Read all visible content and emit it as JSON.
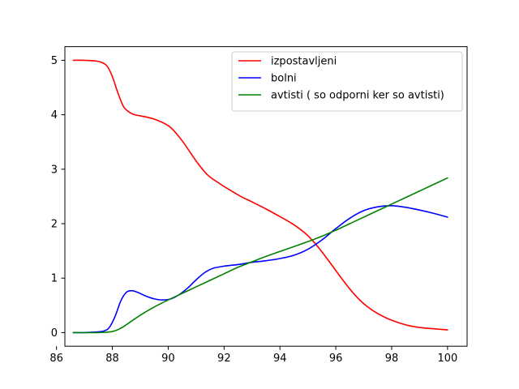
{
  "chart_data": {
    "type": "line",
    "title": "",
    "xlabel": "",
    "ylabel": "",
    "xlim": [
      86.3,
      100.7
    ],
    "ylim": [
      -0.25,
      5.25
    ],
    "x_ticks": [
      86,
      88,
      90,
      92,
      94,
      96,
      98,
      100
    ],
    "y_ticks": [
      0,
      1,
      2,
      3,
      4,
      5
    ],
    "grid": false,
    "legend_position": "top-right",
    "series": [
      {
        "name": "izpostavljeni",
        "color": "#ff0000",
        "points": [
          [
            86.6,
            5.0
          ],
          [
            87.0,
            5.0
          ],
          [
            87.5,
            4.98
          ],
          [
            87.8,
            4.9
          ],
          [
            88.0,
            4.7
          ],
          [
            88.2,
            4.4
          ],
          [
            88.4,
            4.15
          ],
          [
            88.6,
            4.05
          ],
          [
            88.8,
            4.0
          ],
          [
            89.0,
            3.98
          ],
          [
            89.5,
            3.92
          ],
          [
            90.0,
            3.8
          ],
          [
            90.3,
            3.65
          ],
          [
            90.6,
            3.45
          ],
          [
            91.0,
            3.15
          ],
          [
            91.4,
            2.9
          ],
          [
            91.8,
            2.75
          ],
          [
            92.2,
            2.62
          ],
          [
            92.6,
            2.5
          ],
          [
            93.0,
            2.4
          ],
          [
            93.5,
            2.27
          ],
          [
            94.0,
            2.13
          ],
          [
            94.5,
            1.98
          ],
          [
            95.0,
            1.78
          ],
          [
            95.4,
            1.55
          ],
          [
            95.8,
            1.28
          ],
          [
            96.2,
            1.0
          ],
          [
            96.6,
            0.74
          ],
          [
            97.0,
            0.53
          ],
          [
            97.4,
            0.38
          ],
          [
            97.8,
            0.27
          ],
          [
            98.2,
            0.19
          ],
          [
            98.6,
            0.13
          ],
          [
            99.0,
            0.095
          ],
          [
            99.5,
            0.07
          ],
          [
            100.0,
            0.05
          ]
        ]
      },
      {
        "name": "bolni",
        "color": "#0000ff",
        "points": [
          [
            86.6,
            0.0
          ],
          [
            87.0,
            0.0
          ],
          [
            87.4,
            0.01
          ],
          [
            87.7,
            0.03
          ],
          [
            87.9,
            0.1
          ],
          [
            88.1,
            0.3
          ],
          [
            88.3,
            0.58
          ],
          [
            88.5,
            0.74
          ],
          [
            88.7,
            0.77
          ],
          [
            88.9,
            0.74
          ],
          [
            89.2,
            0.67
          ],
          [
            89.5,
            0.62
          ],
          [
            89.8,
            0.6
          ],
          [
            90.1,
            0.62
          ],
          [
            90.4,
            0.7
          ],
          [
            90.7,
            0.82
          ],
          [
            91.0,
            0.97
          ],
          [
            91.3,
            1.1
          ],
          [
            91.6,
            1.18
          ],
          [
            92.0,
            1.22
          ],
          [
            92.5,
            1.25
          ],
          [
            93.0,
            1.29
          ],
          [
            93.5,
            1.32
          ],
          [
            94.0,
            1.36
          ],
          [
            94.5,
            1.42
          ],
          [
            95.0,
            1.53
          ],
          [
            95.5,
            1.7
          ],
          [
            96.0,
            1.91
          ],
          [
            96.5,
            2.1
          ],
          [
            97.0,
            2.24
          ],
          [
            97.5,
            2.31
          ],
          [
            98.0,
            2.33
          ],
          [
            98.5,
            2.3
          ],
          [
            99.0,
            2.25
          ],
          [
            99.5,
            2.19
          ],
          [
            100.0,
            2.12
          ]
        ]
      },
      {
        "name": "avtisti ( so odporni ker so avtisti)",
        "color": "#008000",
        "points": [
          [
            86.6,
            0.0
          ],
          [
            87.0,
            0.0
          ],
          [
            87.5,
            0.0
          ],
          [
            88.0,
            0.02
          ],
          [
            88.3,
            0.08
          ],
          [
            88.6,
            0.18
          ],
          [
            89.0,
            0.32
          ],
          [
            89.5,
            0.47
          ],
          [
            90.0,
            0.6
          ],
          [
            90.5,
            0.72
          ],
          [
            91.0,
            0.84
          ],
          [
            91.5,
            0.96
          ],
          [
            92.0,
            1.08
          ],
          [
            92.5,
            1.2
          ],
          [
            93.0,
            1.3
          ],
          [
            93.5,
            1.4
          ],
          [
            94.0,
            1.49
          ],
          [
            94.5,
            1.58
          ],
          [
            95.0,
            1.67
          ],
          [
            95.5,
            1.77
          ],
          [
            96.0,
            1.88
          ],
          [
            96.5,
            2.0
          ],
          [
            97.0,
            2.12
          ],
          [
            97.5,
            2.24
          ],
          [
            98.0,
            2.36
          ],
          [
            98.5,
            2.48
          ],
          [
            99.0,
            2.6
          ],
          [
            99.5,
            2.72
          ],
          [
            100.0,
            2.84
          ]
        ]
      }
    ]
  }
}
